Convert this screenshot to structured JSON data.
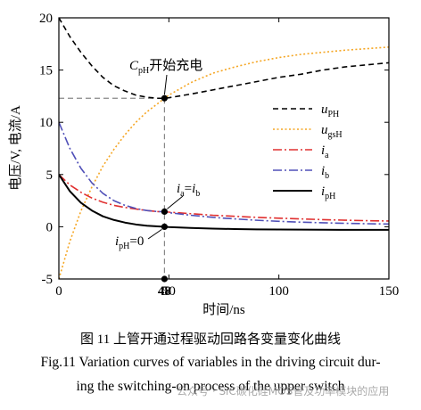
{
  "chart_data": {
    "type": "line",
    "xlabel": "时间/ns",
    "ylabel": "电压/V, 电流/A",
    "xlim": [
      0,
      150
    ],
    "ylim": [
      -5,
      20
    ],
    "xticks": [
      0,
      50,
      100,
      150
    ],
    "yticks": [
      -5,
      0,
      5,
      10,
      15,
      20
    ],
    "grid": false,
    "legend_position": "right",
    "series": [
      {
        "key": "uPH",
        "name_main": "u",
        "name_sub": "PH",
        "style": "dashed",
        "color": "#000000",
        "x": [
          0,
          5,
          10,
          15,
          20,
          25,
          30,
          35,
          40,
          45,
          48,
          50,
          60,
          70,
          80,
          90,
          100,
          110,
          120,
          130,
          140,
          150
        ],
        "y": [
          20,
          18.2,
          16.7,
          15.4,
          14.3,
          13.5,
          13.0,
          12.6,
          12.4,
          12.3,
          12.3,
          12.35,
          12.7,
          13.1,
          13.5,
          13.9,
          14.3,
          14.6,
          15.0,
          15.3,
          15.5,
          15.7
        ]
      },
      {
        "key": "ugsH",
        "name_main": "u",
        "name_sub": "gsH",
        "style": "dotted",
        "color": "#f5a623",
        "x": [
          0,
          5,
          10,
          15,
          20,
          25,
          30,
          35,
          40,
          45,
          48,
          50,
          60,
          70,
          80,
          90,
          100,
          110,
          120,
          130,
          140,
          150
        ],
        "y": [
          -5,
          -1.4,
          1.5,
          3.8,
          5.8,
          7.4,
          8.8,
          10.0,
          11.0,
          11.8,
          12.3,
          12.6,
          13.8,
          14.7,
          15.3,
          15.8,
          16.2,
          16.5,
          16.7,
          16.9,
          17.05,
          17.2
        ]
      },
      {
        "key": "ia",
        "name_main": "i",
        "name_sub": "a",
        "style": "dashdot",
        "color": "#e03030",
        "x": [
          0,
          5,
          10,
          15,
          20,
          25,
          30,
          35,
          40,
          45,
          48,
          50,
          60,
          70,
          80,
          90,
          100,
          110,
          120,
          130,
          140,
          150
        ],
        "y": [
          5,
          4.0,
          3.3,
          2.75,
          2.35,
          2.05,
          1.85,
          1.7,
          1.55,
          1.45,
          1.45,
          1.4,
          1.25,
          1.1,
          1.0,
          0.9,
          0.82,
          0.75,
          0.68,
          0.63,
          0.58,
          0.55
        ]
      },
      {
        "key": "ib",
        "name_main": "i",
        "name_sub": "b",
        "style": "dashdot",
        "color": "#5050b8",
        "x": [
          0,
          5,
          10,
          15,
          20,
          25,
          30,
          35,
          40,
          45,
          48,
          50,
          60,
          70,
          80,
          90,
          100,
          110,
          120,
          130,
          140,
          150
        ],
        "y": [
          10,
          7.5,
          5.6,
          4.2,
          3.2,
          2.5,
          2.05,
          1.75,
          1.55,
          1.45,
          1.45,
          1.35,
          1.1,
          0.9,
          0.75,
          0.62,
          0.52,
          0.44,
          0.38,
          0.33,
          0.29,
          0.26
        ]
      },
      {
        "key": "ipH",
        "name_main": "i",
        "name_sub": "pH",
        "style": "solid",
        "color": "#000000",
        "x": [
          0,
          5,
          10,
          15,
          20,
          25,
          30,
          35,
          40,
          45,
          48,
          50,
          60,
          70,
          80,
          90,
          100,
          110,
          120,
          130,
          140,
          150
        ],
        "y": [
          5,
          3.4,
          2.3,
          1.55,
          1.0,
          0.65,
          0.4,
          0.22,
          0.1,
          0.03,
          0,
          -0.03,
          -0.12,
          -0.18,
          -0.22,
          -0.25,
          -0.27,
          -0.28,
          -0.29,
          -0.3,
          -0.3,
          -0.3
        ]
      }
    ],
    "annotations": [
      {
        "key": "cph",
        "main": "C",
        "sub": "pH",
        "rest": "开始充电",
        "x": 48,
        "y": 12.3
      },
      {
        "key": "iaib",
        "main": "i",
        "sub": "a",
        "rest": "=i",
        "sub2": "b",
        "x": 48,
        "y": 1.45
      },
      {
        "key": "iph0",
        "main": "i",
        "sub": "pH",
        "rest": "=0",
        "x": 48,
        "y": 0
      }
    ],
    "reference_lines": {
      "x": 48,
      "y": 12.3,
      "x_label": "48"
    }
  },
  "caption": {
    "cn": "图 11    上管开通过程驱动回路各变量变化曲线",
    "en_line1": "Fig.11    Variation curves of variables in the driving circuit dur-",
    "en_line2": "ing the switching-on process of the upper switch"
  },
  "watermark": "公众号 · SiC碳化硅MOS管及功率模块的应用",
  "colors": {
    "uPH": "#000000",
    "ugsH": "#f5a623",
    "ia": "#e03030",
    "ib": "#5050b8",
    "ipH": "#000000"
  }
}
